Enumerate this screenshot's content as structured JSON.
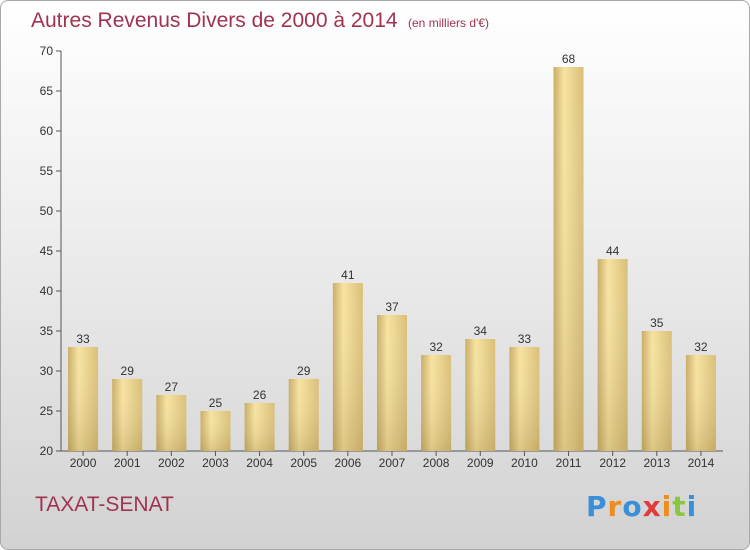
{
  "header": {
    "title": "Autres Revenus Divers de 2000 à 2014",
    "unit": "(en milliers d'€)"
  },
  "footer": {
    "place": "TAXAT-SENAT",
    "logo_letters": [
      "P",
      "r",
      "o",
      "x",
      "i",
      "t",
      "i"
    ],
    "logo_colors": [
      "#3a8fd8",
      "#f08c1e",
      "#3a8fd8",
      "#e03a3a",
      "#f08c1e",
      "#8cc63f",
      "#3a8fd8"
    ]
  },
  "colors": {
    "title": "#a0334e",
    "bar_light": "#f7e3a0",
    "bar_dark": "#c9ad66",
    "axis": "#555555"
  },
  "chart_data": {
    "type": "bar",
    "title": "Autres Revenus Divers de 2000 à 2014",
    "subtitle": "(en milliers d'€)",
    "categories": [
      "2000",
      "2001",
      "2002",
      "2003",
      "2004",
      "2005",
      "2006",
      "2007",
      "2008",
      "2009",
      "2010",
      "2011",
      "2012",
      "2013",
      "2014"
    ],
    "values": [
      33,
      29,
      27,
      25,
      26,
      29,
      41,
      37,
      32,
      34,
      33,
      68,
      44,
      35,
      32
    ],
    "ylim": [
      20,
      70
    ],
    "yticks": [
      20,
      25,
      30,
      35,
      40,
      45,
      50,
      55,
      60,
      65,
      70
    ],
    "grid": false,
    "legend": "none"
  }
}
